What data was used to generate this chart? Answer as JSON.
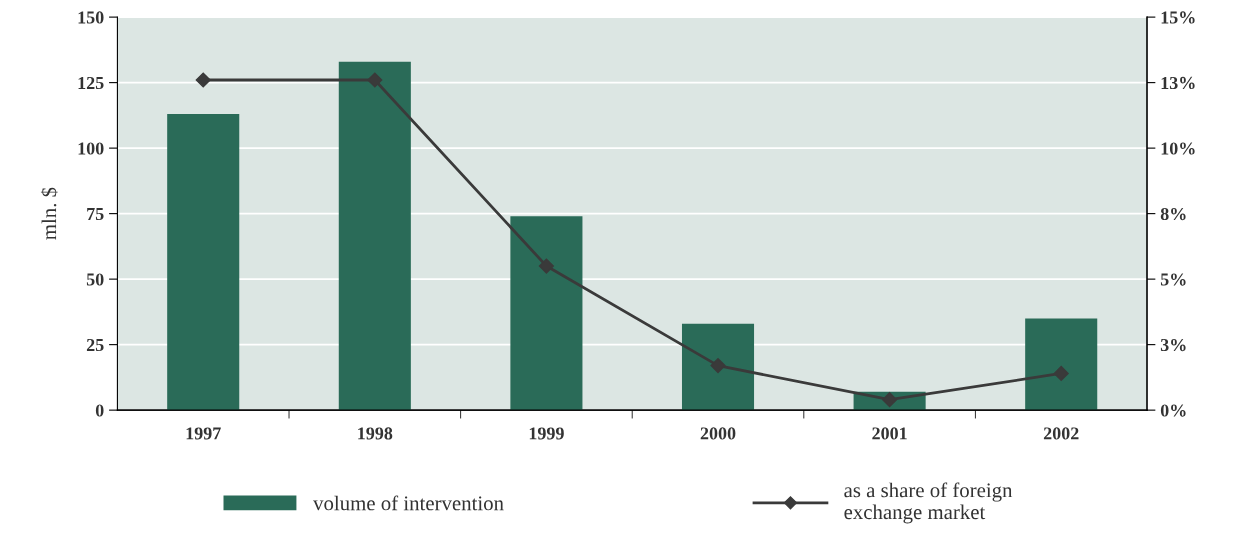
{
  "chart_data": {
    "type": "bar",
    "ylabel": "mln. $",
    "categories": [
      "1997",
      "1998",
      "1999",
      "2000",
      "2001",
      "2002"
    ],
    "series": [
      {
        "name": "volume of intervention",
        "color": "#2a6b58",
        "values": [
          113,
          133,
          74,
          33,
          7,
          35
        ]
      },
      {
        "name": "as a share of foreign\nexchange market",
        "type": "line",
        "axis": "y2",
        "color": "#3a3a3a",
        "marker": "diamond",
        "line_style": "solid",
        "values": [
          12.6,
          12.6,
          5.5,
          1.7,
          0.4,
          1.4
        ]
      }
    ],
    "ylim": [
      0,
      150
    ],
    "yticks": [
      0,
      25,
      50,
      75,
      100,
      125,
      150
    ],
    "y2lim": [
      0,
      15
    ],
    "y2ticks": [
      {
        "value": 0,
        "label": "0%"
      },
      {
        "value": 2.5,
        "label": "3%"
      },
      {
        "value": 5,
        "label": "5%"
      },
      {
        "value": 7.5,
        "label": "8%"
      },
      {
        "value": 10,
        "label": "10%"
      },
      {
        "value": 12.5,
        "label": "13%"
      },
      {
        "value": 15,
        "label": "15%"
      }
    ],
    "grid": "y",
    "legend": "bottom"
  }
}
